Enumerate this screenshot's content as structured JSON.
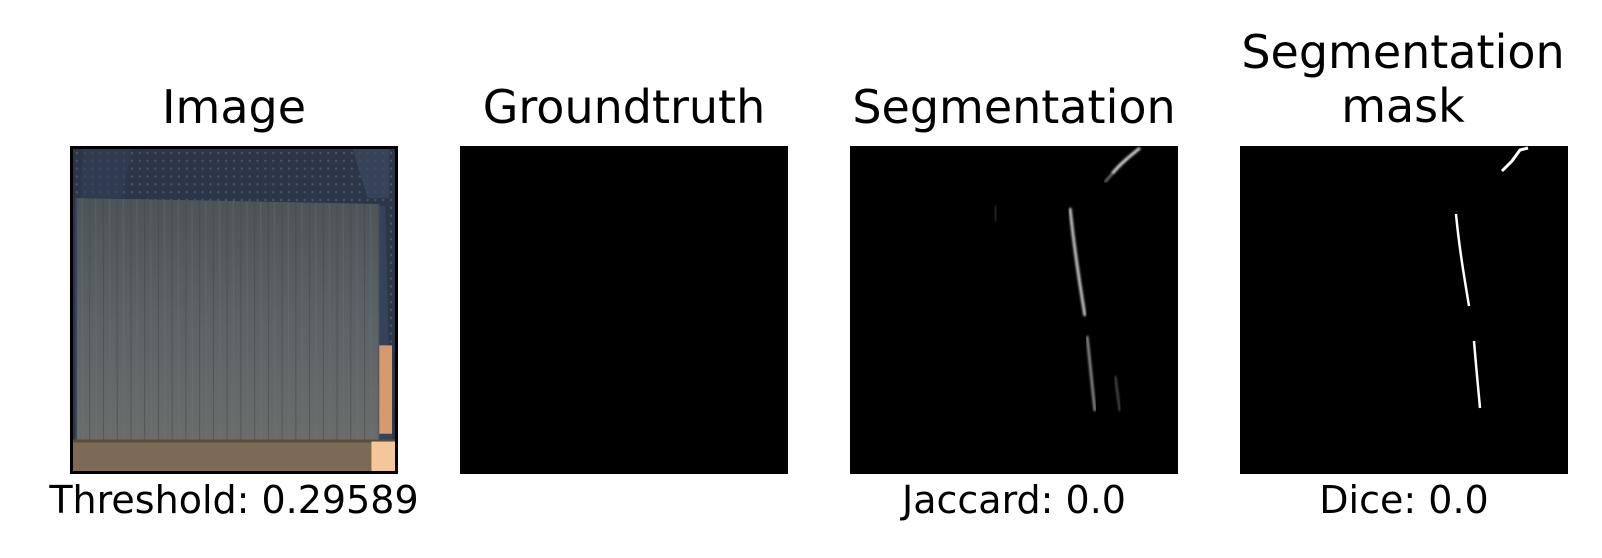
{
  "panels": [
    {
      "title": "Image",
      "caption": "Threshold: 0.29589"
    },
    {
      "title": "Groundtruth",
      "caption": ""
    },
    {
      "title": "Segmentation",
      "caption": "Jaccard: 0.0"
    },
    {
      "title": "Segmentation\nmask",
      "caption": "Dice: 0.0"
    }
  ]
}
